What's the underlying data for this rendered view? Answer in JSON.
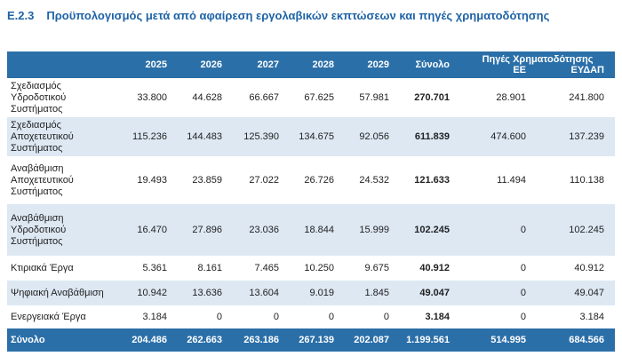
{
  "header": {
    "number": "E.2.3",
    "title": "Προϋπολογισμός μετά από αφαίρεση εργολαβικών εκπτώσεων και πηγές χρηματοδότησης"
  },
  "table": {
    "columns": [
      "2025",
      "2026",
      "2027",
      "2028",
      "2029",
      "Σύνολο"
    ],
    "funding_group": "Πηγές Χρηματοδότησης",
    "funding_columns": [
      "ΕΕ",
      "ΕΥΔΑΠ"
    ],
    "rows": [
      [
        "Σχεδιασμός Υδροδοτικού Συστήματος",
        "33.800",
        "44.628",
        "66.667",
        "67.625",
        "57.981",
        "270.701",
        "28.901",
        "241.800"
      ],
      [
        "Σχεδιασμός Αποχετευτικού Συστήματος",
        "115.236",
        "144.483",
        "125.390",
        "134.675",
        "92.056",
        "611.839",
        "474.600",
        "137.239"
      ],
      [
        "Αναβάθμιση Αποχετευτικού Συστήματος",
        "19.493",
        "23.859",
        "27.022",
        "26.726",
        "24.532",
        "121.633",
        "11.494",
        "110.138"
      ],
      [
        "Αναβάθμιση Υδροδοτικού Συστήματος",
        "16.470",
        "27.896",
        "23.036",
        "18.844",
        "15.999",
        "102.245",
        "0",
        "102.245"
      ],
      [
        "Κτιριακά Έργα",
        "5.361",
        "8.161",
        "7.465",
        "10.250",
        "9.675",
        "40.912",
        "0",
        "40.912"
      ],
      [
        "Ψηφιακή Αναβάθμιση",
        "10.942",
        "13.636",
        "13.604",
        "9.019",
        "1.845",
        "49.047",
        "0",
        "49.047"
      ],
      [
        "Ενεργειακά Έργα",
        "3.184",
        "0",
        "0",
        "0",
        "0",
        "3.184",
        "0",
        "3.184"
      ]
    ],
    "total": [
      "Σύνολο",
      "204.486",
      "262.663",
      "263.186",
      "267.139",
      "202.087",
      "1.199.561",
      "514.995",
      "684.566"
    ]
  }
}
